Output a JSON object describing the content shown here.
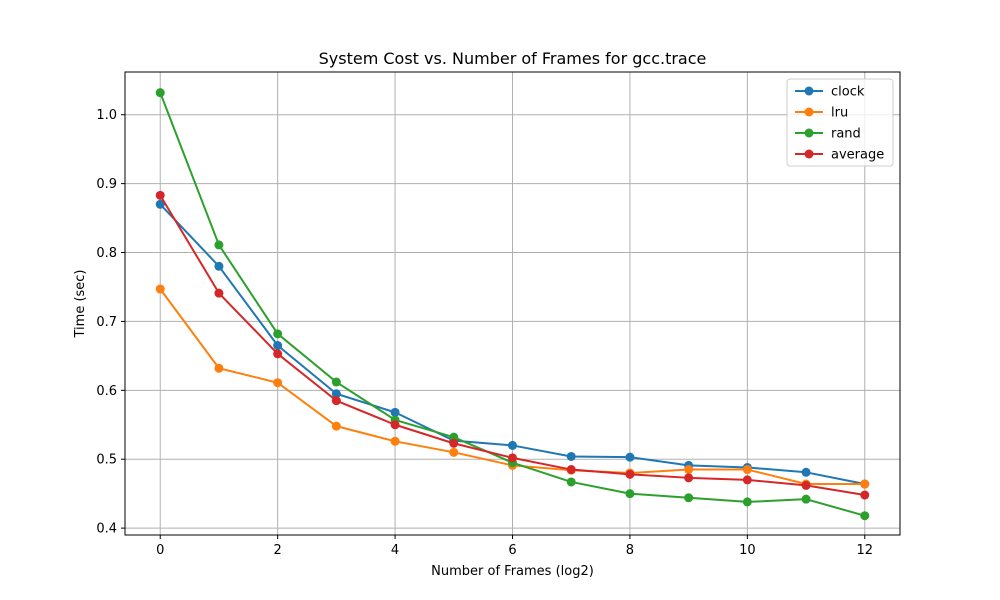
{
  "chart_data": {
    "type": "line",
    "title": "System Cost vs. Number of Frames for gcc.trace",
    "xlabel": "Number of Frames (log2)",
    "ylabel": "Time (sec)",
    "x": [
      0,
      1,
      2,
      3,
      4,
      5,
      6,
      7,
      8,
      9,
      10,
      11,
      12
    ],
    "xlim": [
      -0.6,
      12.6
    ],
    "ylim": [
      0.39,
      1.062
    ],
    "xticks": [
      0,
      2,
      4,
      6,
      8,
      10,
      12
    ],
    "yticks": [
      0.4,
      0.5,
      0.6,
      0.7,
      0.8,
      0.9,
      1.0
    ],
    "xtick_labels": [
      "0",
      "2",
      "4",
      "6",
      "8",
      "10",
      "12"
    ],
    "ytick_labels": [
      "0.4",
      "0.5",
      "0.6",
      "0.7",
      "0.8",
      "0.9",
      "1.0"
    ],
    "grid": true,
    "legend_position": "top-right",
    "series": [
      {
        "name": "clock",
        "color": "#1f77b4",
        "values": [
          0.87,
          0.78,
          0.665,
          0.595,
          0.568,
          0.527,
          0.52,
          0.504,
          0.503,
          0.491,
          0.488,
          0.481,
          0.464
        ]
      },
      {
        "name": "lru",
        "color": "#ff7f0e",
        "values": [
          0.747,
          0.632,
          0.611,
          0.548,
          0.526,
          0.51,
          0.491,
          0.484,
          0.48,
          0.485,
          0.485,
          0.464,
          0.464
        ]
      },
      {
        "name": "rand",
        "color": "#2ca02c",
        "values": [
          1.032,
          0.811,
          0.682,
          0.612,
          0.557,
          0.532,
          0.495,
          0.467,
          0.45,
          0.444,
          0.438,
          0.442,
          0.418
        ]
      },
      {
        "name": "average",
        "color": "#d62728",
        "values": [
          0.883,
          0.741,
          0.653,
          0.585,
          0.55,
          0.523,
          0.502,
          0.485,
          0.478,
          0.473,
          0.47,
          0.462,
          0.448
        ]
      }
    ]
  }
}
